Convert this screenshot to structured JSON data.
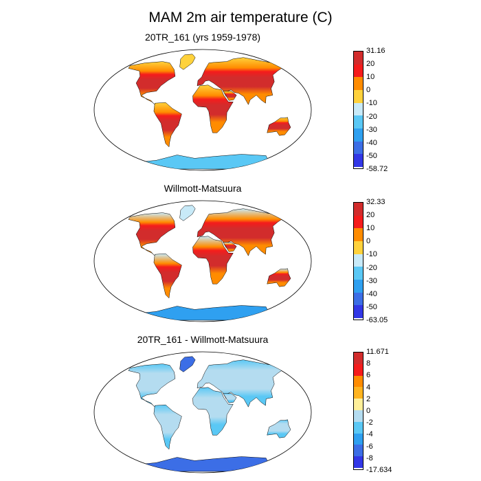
{
  "title": "MAM 2m air temperature (C)",
  "panels": [
    {
      "title": "20TR_161 (yrs 1959-1978)",
      "colorbar": {
        "labels": [
          "31.16",
          "20",
          "10",
          "0",
          "-10",
          "-20",
          "-30",
          "-40",
          "-50",
          "-58.72"
        ],
        "colors": [
          "#d22c2c",
          "#f51c1c",
          "#ff8c00",
          "#ffd23c",
          "#c8eaf8",
          "#5ac8f5",
          "#2fa0f0",
          "#3c6ee6",
          "#3237e6"
        ]
      },
      "land_fills": {
        "north": "#ffd23c",
        "northmid": "#ff8c00",
        "mid": "#f51c1c",
        "tropics": "#d22c2c",
        "south": "#ff8c00",
        "greenland": "#ffd23c",
        "antarctica": "#5ac8f5"
      }
    },
    {
      "title": "Willmott-Matsuura",
      "colorbar": {
        "labels": [
          "32.33",
          "20",
          "10",
          "0",
          "-10",
          "-20",
          "-30",
          "-40",
          "-50",
          "-63.05"
        ],
        "colors": [
          "#d22c2c",
          "#f51c1c",
          "#ff8c00",
          "#ffd23c",
          "#c8eaf8",
          "#5ac8f5",
          "#2fa0f0",
          "#3c6ee6",
          "#3237e6"
        ]
      },
      "land_fills": {
        "north": "#c8eaf8",
        "northmid": "#ff8c00",
        "mid": "#f51c1c",
        "tropics": "#d22c2c",
        "south": "#ff8c00",
        "greenland": "#c8eaf8",
        "antarctica": "#2fa0f0"
      }
    },
    {
      "title": "20TR_161 - Willmott-Matsuura",
      "colorbar": {
        "labels": [
          "11.671",
          "8",
          "6",
          "4",
          "2",
          "0",
          "-2",
          "-4",
          "-6",
          "-8",
          "-17.634"
        ],
        "colors": [
          "#d22c2c",
          "#f51c1c",
          "#ff8c00",
          "#ffb420",
          "#fff09a",
          "#b4dcf0",
          "#5ac8f5",
          "#2fa0f0",
          "#3c6ee6",
          "#3237e6"
        ]
      },
      "land_fills": {
        "north": "#5ac8f5",
        "northmid": "#b4dcf0",
        "mid": "#b4dcf0",
        "tropics": "#b4dcf0",
        "south": "#5ac8f5",
        "greenland": "#3c6ee6",
        "antarctica": "#3c6ee6"
      }
    }
  ]
}
